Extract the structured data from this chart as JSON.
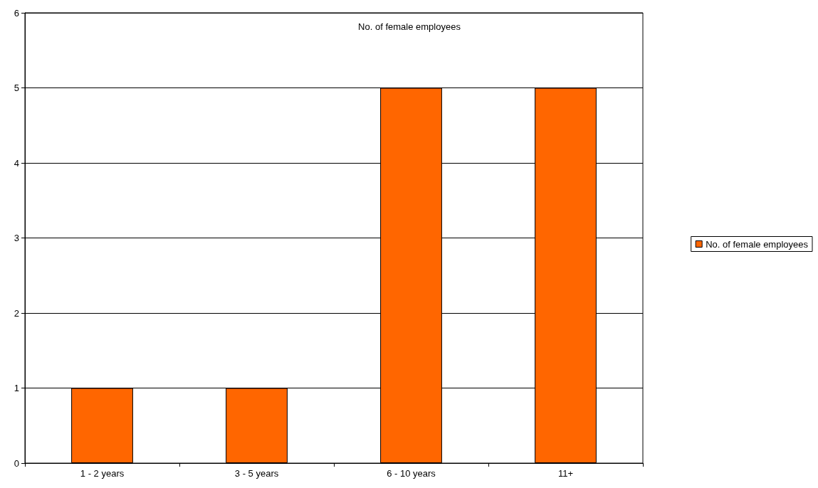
{
  "chart_data": {
    "type": "bar",
    "title": "No. of female employees",
    "categories": [
      "1 - 2 years",
      "3 - 5 years",
      "6 - 10 years",
      "11+"
    ],
    "series": [
      {
        "name": "No. of female employees",
        "color": "#ff6600",
        "values": [
          1,
          1,
          5,
          5
        ]
      }
    ],
    "ylim": [
      0,
      6
    ],
    "yticks": [
      0,
      1,
      2,
      3,
      4,
      5,
      6
    ],
    "grid": "y",
    "legend": "right"
  }
}
